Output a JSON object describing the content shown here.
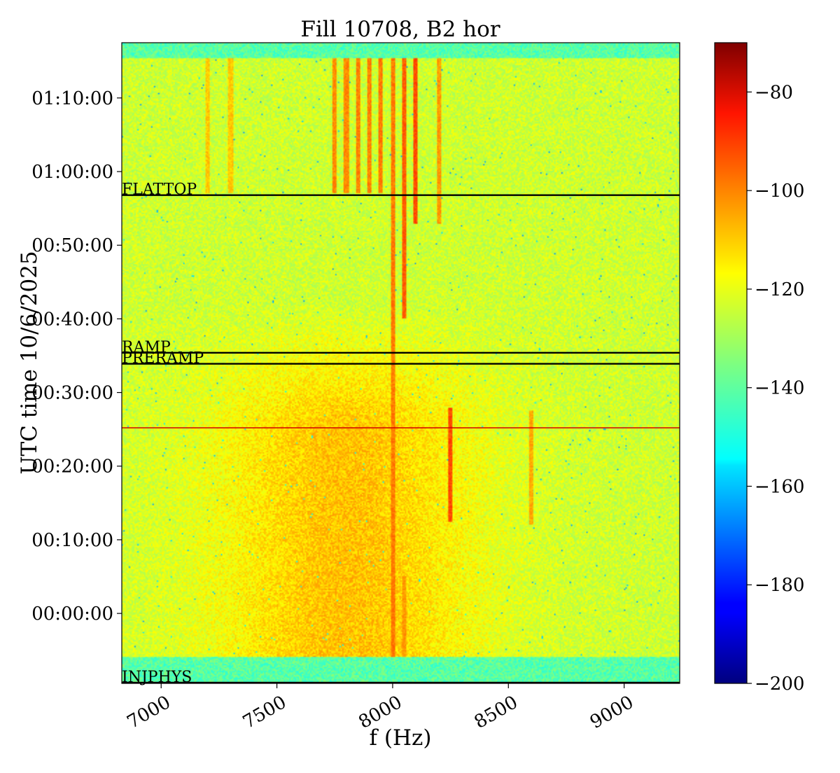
{
  "chart_data": {
    "type": "heatmap",
    "title": "Fill 10708, B2 hor",
    "xlabel": "f (Hz)",
    "ylabel": "UTC time 10/6/2025",
    "xlim": [
      6830,
      9240
    ],
    "x_ticks": [
      7000,
      7500,
      8000,
      8500,
      9000
    ],
    "x_tick_labels": [
      "7000",
      "7500",
      "8000",
      "8500",
      "9000"
    ],
    "ylim_minutes": [
      -9.5,
      77.5
    ],
    "y_ticks_minutes": [
      0,
      10,
      20,
      30,
      40,
      50,
      60,
      70
    ],
    "y_tick_labels": [
      "00:00:00",
      "00:10:00",
      "00:20:00",
      "00:30:00",
      "00:40:00",
      "00:50:00",
      "01:00:00",
      "01:10:00"
    ],
    "colorbar": {
      "colormap": "jet",
      "range": [
        -200,
        -70
      ],
      "ticks": [
        -200,
        -180,
        -160,
        -140,
        -120,
        -100,
        -80
      ],
      "tick_labels": [
        "−200",
        "−180",
        "−160",
        "−140",
        "−120",
        "−100",
        "−80"
      ]
    },
    "background_level": -125,
    "low_band_level": -140,
    "low_bands_minutes": [
      [
        -9.5,
        -6
      ],
      [
        75.5,
        77.5
      ]
    ],
    "spectral_lines": [
      {
        "freq": 8000,
        "t_start": -6,
        "t_end": 75.5,
        "level": -102
      },
      {
        "freq": 8050,
        "t_start": 40,
        "t_end": 75.5,
        "level": -98
      },
      {
        "freq": 8100,
        "t_start": 53,
        "t_end": 75.5,
        "level": -96
      },
      {
        "freq": 8050,
        "t_start": -6,
        "t_end": 5,
        "level": -106
      },
      {
        "freq": 8000,
        "t_start": -6,
        "t_end": 5,
        "level": -106
      },
      {
        "freq": 8250,
        "t_start": 12.5,
        "t_end": 28,
        "level": -96
      },
      {
        "freq": 8600,
        "t_start": 12,
        "t_end": 27.5,
        "level": -108
      },
      {
        "freq": 7750,
        "t_start": 57,
        "t_end": 75.5,
        "level": -104
      },
      {
        "freq": 7800,
        "t_start": 57,
        "t_end": 75.5,
        "level": -104
      },
      {
        "freq": 7850,
        "t_start": 57,
        "t_end": 75.5,
        "level": -103
      },
      {
        "freq": 7900,
        "t_start": 57,
        "t_end": 75.5,
        "level": -103
      },
      {
        "freq": 7950,
        "t_start": 57,
        "t_end": 75.5,
        "level": -102
      },
      {
        "freq": 8200,
        "t_start": 53,
        "t_end": 75.5,
        "level": -106
      },
      {
        "freq": 7200,
        "t_start": 57,
        "t_end": 75.5,
        "level": -112
      },
      {
        "freq": 7300,
        "t_start": 57,
        "t_end": 75.5,
        "level": -112
      }
    ],
    "events": [
      {
        "label": "FLATTOP",
        "time": 56.8,
        "color": "#000000"
      },
      {
        "label": "RAMP",
        "time": 35.4,
        "color": "#000000"
      },
      {
        "label": "PRERAMP",
        "time": 33.9,
        "color": "#000000"
      },
      {
        "label": "",
        "time": 25.2,
        "color": "#d00000"
      },
      {
        "label": "INJPHYS",
        "time": -9.4,
        "color": "#000000"
      }
    ]
  }
}
